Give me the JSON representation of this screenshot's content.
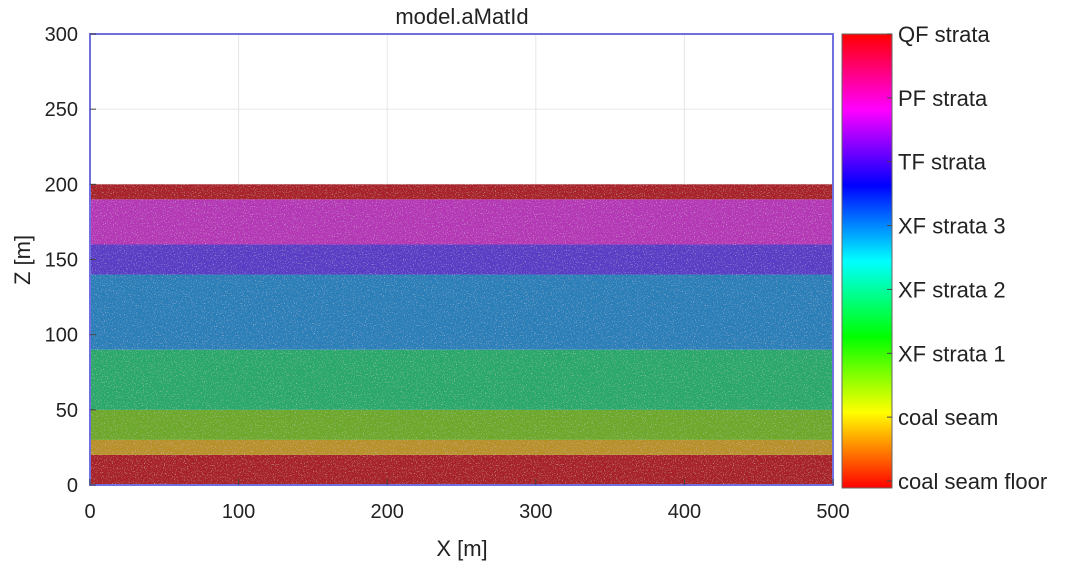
{
  "chart_data": {
    "type": "area",
    "title": "model.aMatId",
    "xlabel": "X [m]",
    "ylabel": "Z [m]",
    "xlim": [
      0,
      500
    ],
    "ylim": [
      0,
      300
    ],
    "xticks": [
      0,
      100,
      200,
      300,
      400,
      500
    ],
    "yticks": [
      0,
      50,
      100,
      150,
      200,
      250,
      300
    ],
    "grid": true,
    "layers": [
      {
        "name": "coal seam floor",
        "z_bottom": 0,
        "z_top": 20,
        "color": "#a8222a"
      },
      {
        "name": "coal seam",
        "z_bottom": 20,
        "z_top": 30,
        "color": "#b8902a"
      },
      {
        "name": "XF strata 1",
        "z_bottom": 30,
        "z_top": 50,
        "color": "#6ea82c"
      },
      {
        "name": "XF strata 2",
        "z_bottom": 50,
        "z_top": 90,
        "color": "#2aa86c"
      },
      {
        "name": "XF strata 3",
        "z_bottom": 90,
        "z_top": 140,
        "color": "#2c7fb8"
      },
      {
        "name": "TF strata",
        "z_bottom": 140,
        "z_top": 160,
        "color": "#5a3ec4"
      },
      {
        "name": "PF strata",
        "z_bottom": 160,
        "z_top": 190,
        "color": "#b437b6"
      },
      {
        "name": "QF strata",
        "z_bottom": 190,
        "z_top": 200,
        "color": "#a8222a"
      }
    ],
    "colorbar": {
      "labels": [
        "QF strata",
        "PF strata",
        "TF strata",
        "XF strata 3",
        "XF strata 2",
        "XF strata 1",
        "coal seam",
        "coal seam floor"
      ],
      "colors_top_to_bottom": [
        "#ff0000",
        "#ff00ff",
        "#0000ff",
        "#00ffff",
        "#00ff00",
        "#ffff00",
        "#ff0000"
      ]
    }
  },
  "colors": {
    "axes_frame": "#6f6fe0"
  }
}
